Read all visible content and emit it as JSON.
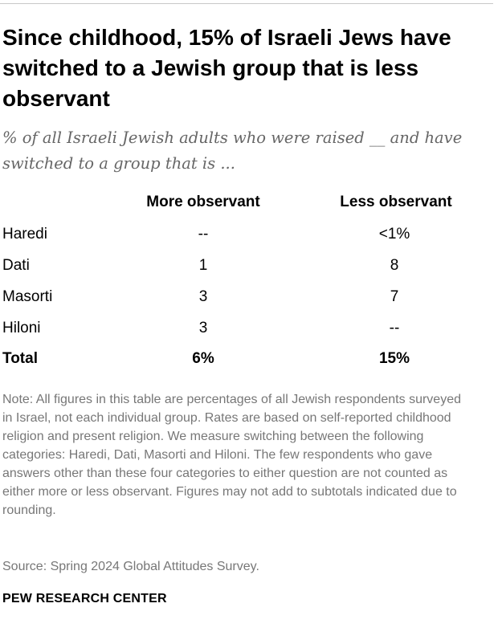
{
  "title": "Since childhood, 15% of Israeli Jews have switched to a Jewish group that is less observant",
  "subtitle": "% of all Israeli Jewish adults who were raised __ and have switched to a group that is ...",
  "chart_data": {
    "type": "table",
    "columns": [
      "More observant",
      "Less observant"
    ],
    "rows": [
      {
        "label": "Haredi",
        "values": [
          "--",
          "<1%"
        ]
      },
      {
        "label": "Dati",
        "values": [
          "1",
          "8"
        ]
      },
      {
        "label": "Masorti",
        "values": [
          "3",
          "7"
        ]
      },
      {
        "label": "Hiloni",
        "values": [
          "3",
          "--"
        ]
      }
    ],
    "total": {
      "label": "Total",
      "values": [
        "6%",
        "15%"
      ]
    }
  },
  "note": "Note: All figures in this table are percentages of all Jewish respondents surveyed in Israel, not each individual group. Rates are based on self-reported childhood religion and present religion. We measure switching between the following categories: Haredi, Dati, Masorti and Hiloni. The few respondents who gave answers other than these four categories to either question are not counted as either more or less observant. Figures may not add to subtotals indicated due to rounding.",
  "source": "Source: Spring 2024 Global Attitudes Survey.",
  "brand": "PEW RESEARCH CENTER"
}
